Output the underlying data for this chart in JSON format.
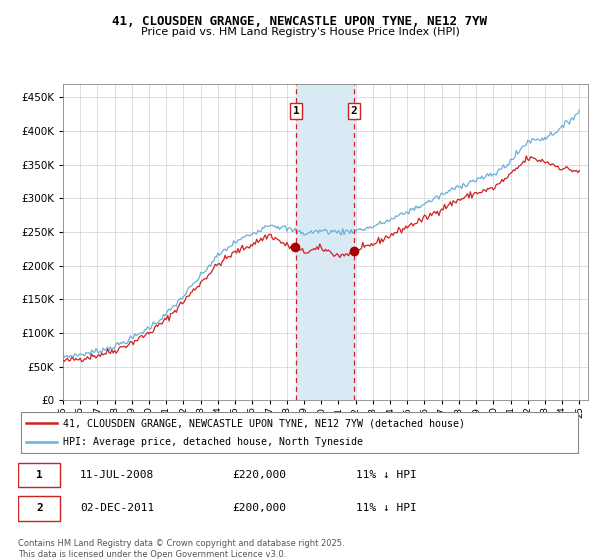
{
  "title": "41, CLOUSDEN GRANGE, NEWCASTLE UPON TYNE, NE12 7YW",
  "subtitle": "Price paid vs. HM Land Registry's House Price Index (HPI)",
  "legend_line1": "41, CLOUSDEN GRANGE, NEWCASTLE UPON TYNE, NE12 7YW (detached house)",
  "legend_line2": "HPI: Average price, detached house, North Tyneside",
  "annotation1_date": "11-JUL-2008",
  "annotation1_price": "£220,000",
  "annotation1_hpi": "11% ↓ HPI",
  "annotation2_date": "02-DEC-2011",
  "annotation2_price": "£200,000",
  "annotation2_hpi": "11% ↓ HPI",
  "footnote": "Contains HM Land Registry data © Crown copyright and database right 2025.\nThis data is licensed under the Open Government Licence v3.0.",
  "hpi_color": "#6ab0d8",
  "price_color": "#cc2222",
  "annotation_box_color": "#cc2222",
  "vline_color": "#cc2222",
  "shade_color": "#daeaf5",
  "marker_color": "#aa0000",
  "ylim": [
    0,
    470000
  ],
  "yticks": [
    0,
    50000,
    100000,
    150000,
    200000,
    250000,
    300000,
    350000,
    400000,
    450000
  ],
  "year_start": 1995,
  "year_end": 2025,
  "t1_year": 2008.54,
  "t2_year": 2011.92,
  "t1_price": 220000,
  "t2_price": 200000
}
